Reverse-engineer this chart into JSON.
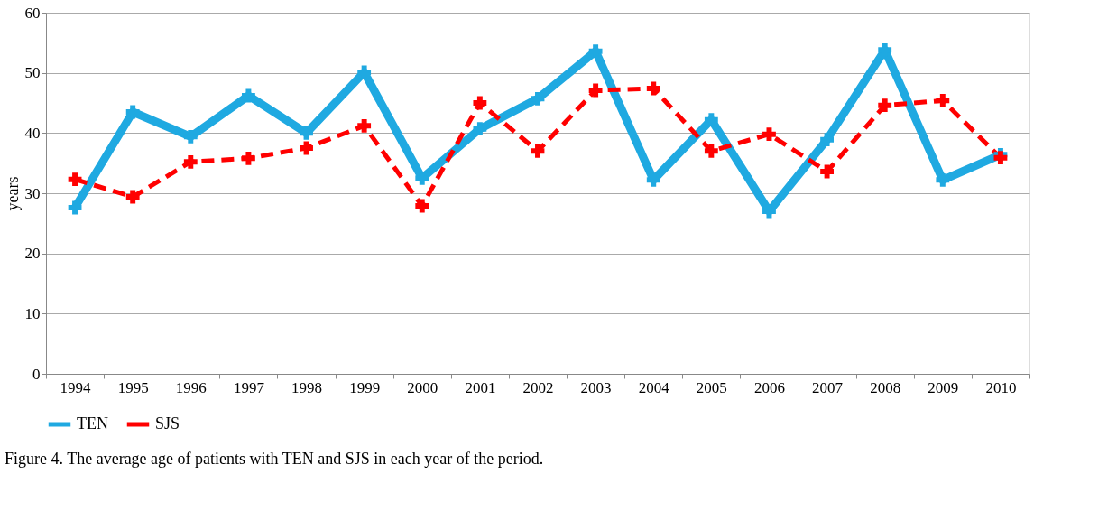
{
  "chart_data": {
    "type": "line",
    "ylabel": "years",
    "categories": [
      "1994",
      "1995",
      "1996",
      "1997",
      "1998",
      "1999",
      "2000",
      "2001",
      "2002",
      "2003",
      "2004",
      "2005",
      "2006",
      "2007",
      "2008",
      "2009",
      "2010"
    ],
    "series": [
      {
        "name": "TEN",
        "color": "#1fa9e1",
        "line_style": "solid",
        "values": [
          27.6,
          43.5,
          39.4,
          46.2,
          40.0,
          50.1,
          32.5,
          40.7,
          45.7,
          53.6,
          32.2,
          42.2,
          27.0,
          38.9,
          53.8,
          32.2,
          36.4
        ]
      },
      {
        "name": "SJS",
        "color": "#ff0000",
        "line_style": "dashed",
        "values": [
          32.3,
          29.4,
          35.2,
          35.8,
          37.5,
          41.2,
          27.9,
          45.0,
          37.0,
          47.1,
          47.4,
          37.0,
          39.8,
          33.6,
          44.6,
          45.4,
          35.9
        ]
      }
    ],
    "ylim": [
      0,
      60
    ],
    "yticks": [
      0,
      10,
      20,
      30,
      40,
      50,
      60
    ],
    "grid": "y",
    "legend": "bottom",
    "marker": "cross",
    "annotations": [
      "Figure 4. The average age of patients with TEN and SJS in each year of the period."
    ]
  }
}
